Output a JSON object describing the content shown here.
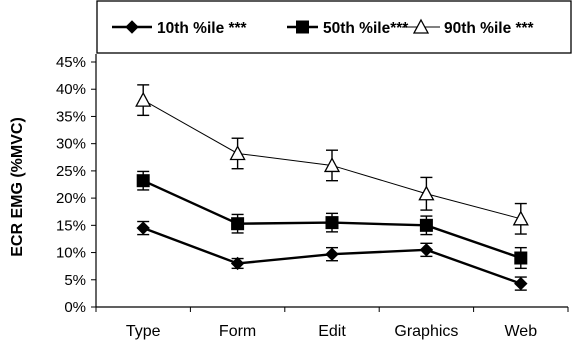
{
  "chart_data": {
    "type": "line",
    "title": "",
    "xlabel": "",
    "ylabel": "ECR EMG (%MVC)",
    "categories": [
      "Type",
      "Form",
      "Edit",
      "Graphics",
      "Web"
    ],
    "ylim": [
      0,
      45
    ],
    "yticks": [
      "0%",
      "5%",
      "10%",
      "15%",
      "20%",
      "25%",
      "30%",
      "35%",
      "40%",
      "45%"
    ],
    "grid": false,
    "legend_position": "top",
    "series": [
      {
        "name": "10th %ile ***",
        "marker": "diamond",
        "marker_fill": "#000000",
        "line_width": "thick",
        "values": [
          14.5,
          8.0,
          9.7,
          10.5,
          4.3
        ],
        "errors": [
          1.2,
          0.9,
          1.2,
          1.2,
          1.2
        ]
      },
      {
        "name": "50th %ile***",
        "marker": "square",
        "marker_fill": "#000000",
        "line_width": "thick",
        "values": [
          23.2,
          15.3,
          15.5,
          15.0,
          9.0
        ],
        "errors": [
          1.7,
          1.7,
          1.7,
          1.7,
          1.9
        ]
      },
      {
        "name": "90th %ile ***",
        "marker": "triangle",
        "marker_fill": "#ffffff",
        "line_width": "thin",
        "values": [
          38.0,
          28.2,
          26.0,
          20.8,
          16.2
        ],
        "errors": [
          2.8,
          2.8,
          2.8,
          3.0,
          2.8
        ]
      }
    ]
  }
}
